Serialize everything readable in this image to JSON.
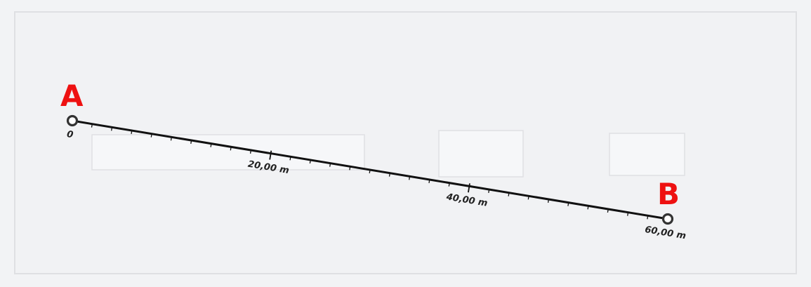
{
  "point_a": {
    "letter": "A"
  },
  "point_b": {
    "letter": "B"
  },
  "ruler": {
    "total_length_m": 60,
    "tick_interval_m": 2,
    "labels": [
      {
        "value_m": 0,
        "text": "0"
      },
      {
        "value_m": 20,
        "text": "20,00 m"
      },
      {
        "value_m": 40,
        "text": "40,00 m"
      },
      {
        "value_m": 60,
        "text": "60,00 m"
      }
    ]
  },
  "colors": {
    "letter": "#ee1111",
    "line": "#111111",
    "background": "#f2f3f5"
  }
}
